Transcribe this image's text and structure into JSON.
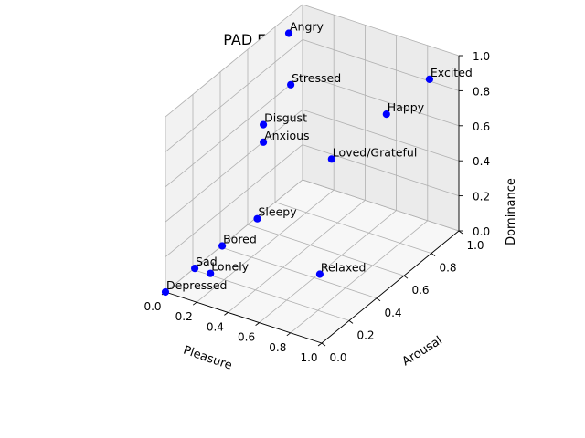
{
  "chart_data": {
    "type": "scatter",
    "title": "PAD Emotional Scale",
    "xlabel": "Pleasure",
    "ylabel": "Arousal",
    "zlabel": "Dominance",
    "xlim": [
      0.0,
      1.0
    ],
    "ylim": [
      0.0,
      1.0
    ],
    "zlim": [
      0.0,
      1.0
    ],
    "xticks": [
      "0.0",
      "0.2",
      "0.4",
      "0.6",
      "0.8",
      "1.0"
    ],
    "yticks": [
      "0.0",
      "0.2",
      "0.4",
      "0.6",
      "0.8",
      "1.0"
    ],
    "zticks": [
      "0.0",
      "0.2",
      "0.4",
      "0.6",
      "0.8",
      "1.0"
    ],
    "grid": true,
    "marker_color": "#0000ff",
    "points": [
      {
        "label": "Angry",
        "x": 0.0,
        "y": 0.9,
        "z": 0.9
      },
      {
        "label": "Excited",
        "x": 0.9,
        "y": 0.9,
        "z": 0.9
      },
      {
        "label": "Stressed",
        "x": 0.1,
        "y": 0.8,
        "z": 0.7
      },
      {
        "label": "Happy",
        "x": 0.8,
        "y": 0.7,
        "z": 0.8
      },
      {
        "label": "Disgust",
        "x": 0.1,
        "y": 0.6,
        "z": 0.6
      },
      {
        "label": "Anxious",
        "x": 0.1,
        "y": 0.6,
        "z": 0.5
      },
      {
        "label": "Loved/Grateful",
        "x": 0.8,
        "y": 0.3,
        "z": 0.8
      },
      {
        "label": "Sleepy",
        "x": 0.5,
        "y": 0.1,
        "z": 0.5
      },
      {
        "label": "Bored",
        "x": 0.1,
        "y": 0.3,
        "z": 0.1
      },
      {
        "label": "Sad",
        "x": 0.1,
        "y": 0.1,
        "z": 0.1
      },
      {
        "label": "Lonely",
        "x": 0.2,
        "y": 0.1,
        "z": 0.1
      },
      {
        "label": "Depressed",
        "x": 0.0,
        "y": 0.0,
        "z": 0.0
      },
      {
        "label": "Relaxed",
        "x": 0.9,
        "y": 0.1,
        "z": 0.3
      }
    ]
  }
}
